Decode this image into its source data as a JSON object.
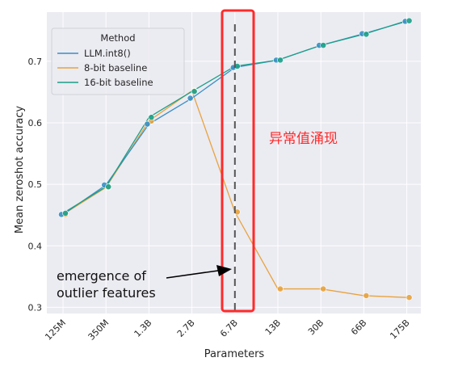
{
  "chart_data": {
    "type": "line",
    "xlabel": "Parameters",
    "ylabel": "Mean zeroshot accuracy",
    "categories": [
      "125M",
      "350M",
      "1.3B",
      "2.7B",
      "6.7B",
      "13B",
      "30B",
      "66B",
      "175B"
    ],
    "ylim": [
      0.29,
      0.78
    ],
    "yticks": [
      0.3,
      0.4,
      0.5,
      0.6,
      0.7
    ],
    "grid": true,
    "legend": {
      "title": "Method",
      "placement": "top-left",
      "entries": [
        "LLM.int8()",
        "8-bit baseline",
        "16-bit baseline"
      ]
    },
    "series": [
      {
        "name": "LLM.int8()",
        "color": "#3a8fc4",
        "values": [
          0.451,
          0.499,
          0.598,
          0.64,
          0.69,
          0.702,
          0.726,
          0.745,
          0.765
        ]
      },
      {
        "name": "8-bit baseline",
        "color": "#e8a33d",
        "values": [
          0.451,
          0.495,
          0.603,
          0.652,
          0.455,
          0.33,
          0.33,
          0.319,
          0.316
        ]
      },
      {
        "name": "16-bit baseline",
        "color": "#1aa088",
        "values": [
          0.453,
          0.496,
          0.609,
          0.651,
          0.692,
          0.702,
          0.726,
          0.744,
          0.766
        ]
      }
    ],
    "annotations": {
      "outlier_note_line1": "emergence of",
      "outlier_note_line2": "outlier features",
      "chinese_note": "异常值涌现",
      "highlight_color": "#ff2a2a"
    }
  }
}
